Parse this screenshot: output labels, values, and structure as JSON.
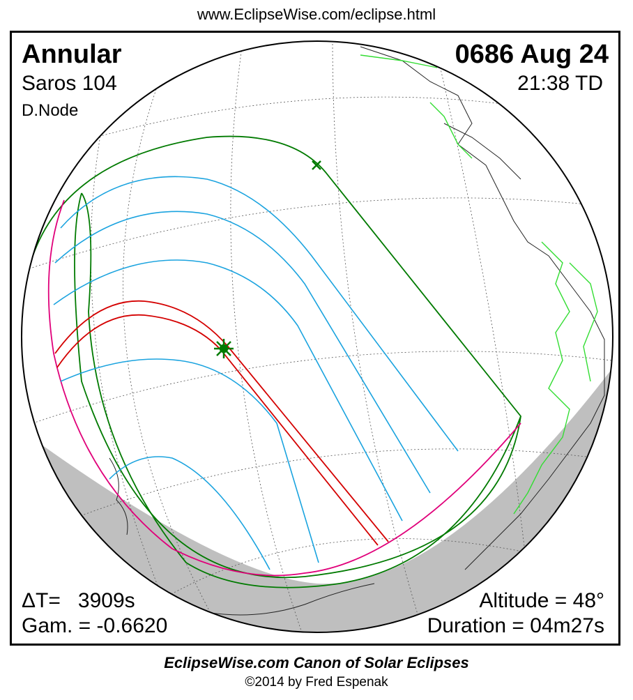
{
  "header": {
    "url": "www.EclipseWise.com/eclipse.html"
  },
  "eclipse": {
    "type": "Annular",
    "date": "0686 Aug 24",
    "saros": "Saros 104",
    "time": "21:38 TD",
    "node": "D.Node",
    "delta_t": "ΔT=   3909s",
    "gamma": "Gam. = -0.6620",
    "altitude": "Altitude = 48°",
    "duration": "Duration = 04m27s"
  },
  "footer": {
    "title": "EclipseWise.com Canon of Solar Eclipses",
    "copyright": "©2014 by Fred Espenak"
  },
  "colors": {
    "central_path": "#d40000",
    "penumbral_limits": "#007a00",
    "magnitude_curves": "#1aa3df",
    "rise_set_curve": "#e0007a",
    "borders": "#33dd33",
    "night_shade": "#bfbfbf"
  },
  "icons": {
    "greatest_eclipse": "eight-point-star-icon",
    "subsolar_point": "x-mark-icon"
  }
}
